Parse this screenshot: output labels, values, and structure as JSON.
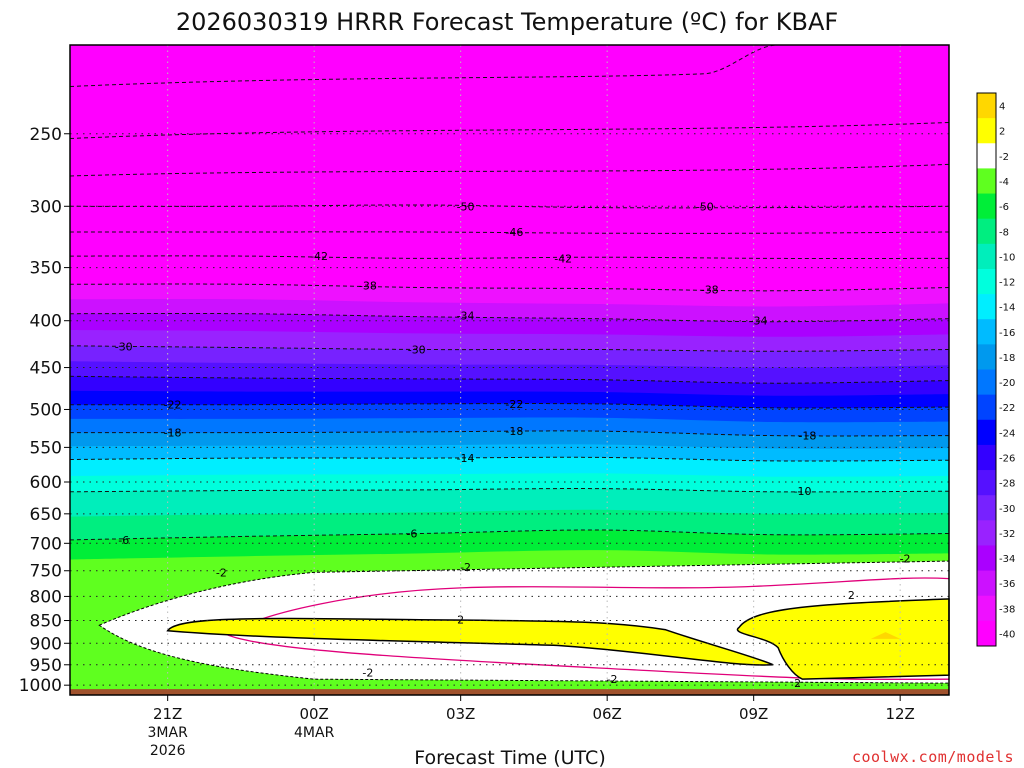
{
  "chart_data": {
    "type": "contour",
    "title": "2026030319 HRRR Forecast Temperature (ºC) for KBAF",
    "xlabel": "Forecast Time (UTC)",
    "ylabel": "",
    "x_ticks": [
      {
        "hours": 2,
        "label": "21Z",
        "sub1": "3MAR",
        "sub2": "2026"
      },
      {
        "hours": 5,
        "label": "00Z",
        "sub1": "4MAR",
        "sub2": ""
      },
      {
        "hours": 8,
        "label": "03Z",
        "sub1": "",
        "sub2": ""
      },
      {
        "hours": 11,
        "label": "06Z",
        "sub1": "",
        "sub2": ""
      },
      {
        "hours": 14,
        "label": "09Z",
        "sub1": "",
        "sub2": ""
      },
      {
        "hours": 17,
        "label": "12Z",
        "sub1": "",
        "sub2": ""
      }
    ],
    "xlim_hours": [
      0,
      18
    ],
    "y_ticks": [
      250,
      300,
      350,
      400,
      450,
      500,
      550,
      600,
      650,
      700,
      750,
      800,
      850,
      900,
      950,
      1000
    ],
    "ylim_hpa": [
      200,
      1025
    ],
    "y_scale": "reversed",
    "colorbar_levels": [
      4,
      2,
      -2,
      -4,
      -6,
      -8,
      -10,
      -12,
      -14,
      -16,
      -18,
      -20,
      -22,
      -24,
      -26,
      -28,
      -30,
      -32,
      -34,
      -36,
      -38,
      -40
    ],
    "colorbar_colors": [
      "#ffd700",
      "#ffff00",
      "#ffffff",
      "#5fff1f",
      "#00ee38",
      "#00ee80",
      "#00eebb",
      "#00ffdd",
      "#00eeff",
      "#00bbff",
      "#0099ee",
      "#0077ff",
      "#0044ff",
      "#0000ff",
      "#3300ff",
      "#5511ff",
      "#7722ff",
      "#9922ff",
      "#aa00ff",
      "#cc11ff",
      "#ee11ff",
      "#ff00ff"
    ],
    "contour_lines": [
      {
        "value": -50,
        "hpa": [
          300,
          300,
          299,
          301,
          301,
          300
        ]
      },
      {
        "value": -46,
        "hpa": [
          320,
          320,
          320,
          321,
          321,
          320
        ]
      },
      {
        "value": -42,
        "hpa": [
          340,
          340,
          342,
          341,
          342,
          342
        ]
      },
      {
        "value": -38,
        "hpa": [
          365,
          365,
          368,
          369,
          371,
          368
        ]
      },
      {
        "value": -34,
        "hpa": [
          393,
          393,
          396,
          398,
          401,
          398
        ]
      },
      {
        "value": -30,
        "hpa": [
          426,
          428,
          430,
          430,
          432,
          430
        ]
      },
      {
        "value": -26,
        "hpa": [
          460,
          462,
          463,
          464,
          468,
          465
        ]
      },
      {
        "value": -22,
        "hpa": [
          494,
          494,
          493,
          493,
          498,
          497
        ]
      },
      {
        "value": -18,
        "hpa": [
          530,
          530,
          529,
          528,
          534,
          534
        ]
      },
      {
        "value": -14,
        "hpa": [
          567,
          565,
          565,
          564,
          569,
          568
        ]
      },
      {
        "value": -10,
        "hpa": [
          615,
          613,
          612,
          610,
          615,
          614
        ]
      },
      {
        "value": -6,
        "hpa": [
          694,
          688,
          683,
          677,
          685,
          683
        ]
      }
    ],
    "contour_labels": [
      {
        "value": "-50",
        "hours": 8.1,
        "hpa": 300
      },
      {
        "value": "-50",
        "hours": 13.0,
        "hpa": 300
      },
      {
        "value": "-46",
        "hours": 9.1,
        "hpa": 320
      },
      {
        "value": "-42",
        "hours": 5.1,
        "hpa": 340
      },
      {
        "value": "-42",
        "hours": 10.1,
        "hpa": 342
      },
      {
        "value": "-38",
        "hours": 6.1,
        "hpa": 366
      },
      {
        "value": "-38",
        "hours": 13.1,
        "hpa": 370
      },
      {
        "value": "-34",
        "hours": 8.1,
        "hpa": 395
      },
      {
        "value": "-34",
        "hours": 14.1,
        "hpa": 400
      },
      {
        "value": "-30",
        "hours": 1.1,
        "hpa": 427
      },
      {
        "value": "-30",
        "hours": 7.1,
        "hpa": 430
      },
      {
        "value": "-22",
        "hours": 2.1,
        "hpa": 494
      },
      {
        "value": "-22",
        "hours": 9.1,
        "hpa": 493
      },
      {
        "value": "-18",
        "hours": 2.1,
        "hpa": 530
      },
      {
        "value": "-18",
        "hours": 9.1,
        "hpa": 528
      },
      {
        "value": "-18",
        "hours": 15.1,
        "hpa": 534
      },
      {
        "value": "-14",
        "hours": 8.1,
        "hpa": 565
      },
      {
        "value": "-10",
        "hours": 15.0,
        "hpa": 614
      },
      {
        "value": "-6",
        "hours": 1.1,
        "hpa": 694
      },
      {
        "value": "-6",
        "hours": 7.0,
        "hpa": 683
      },
      {
        "value": "-2",
        "hours": 3.1,
        "hpa": 753
      },
      {
        "value": "-2",
        "hours": 8.1,
        "hpa": 743
      },
      {
        "value": "-2",
        "hours": 17.1,
        "hpa": 727
      },
      {
        "value": "2",
        "hours": 8.0,
        "hpa": 848
      },
      {
        "value": "2",
        "hours": 16.0,
        "hpa": 797
      },
      {
        "value": "-2",
        "hours": 6.1,
        "hpa": 969
      },
      {
        "value": "-2",
        "hours": 11.1,
        "hpa": 985
      },
      {
        "value": "2",
        "hours": 14.9,
        "hpa": 995
      }
    ],
    "freezing_layer": {
      "value": -2,
      "top_hpa": [
        760,
        755,
        752,
        748,
        745,
        740,
        735,
        732
      ],
      "bottom_hpa": [
        955,
        965,
        975,
        985,
        992,
        995,
        995,
        995
      ]
    },
    "warm_layer": {
      "value": 2,
      "hours": [
        2.0,
        4.5,
        8.0,
        11.0,
        13.5,
        14.5,
        16.0,
        18.0
      ],
      "top_hpa": [
        850,
        850,
        840,
        840,
        850,
        840,
        815,
        805
      ]
    },
    "grid": true,
    "ground": {
      "color": "#a0522d",
      "hpa": 1010
    },
    "legend": "right"
  },
  "credit": "coolwx.com/models"
}
